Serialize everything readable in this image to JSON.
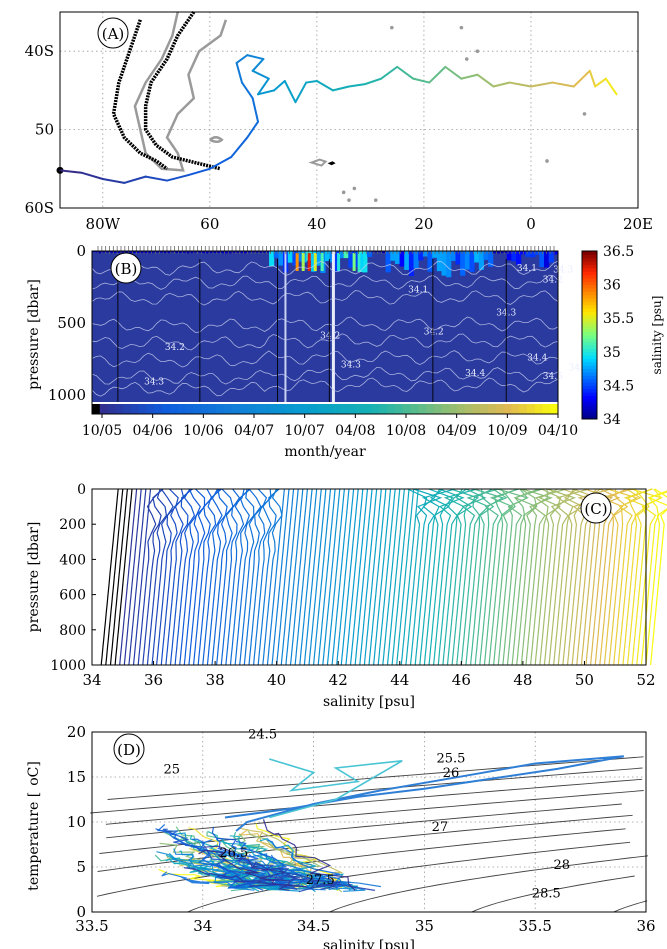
{
  "colors": {
    "grid": "#9a9a9a",
    "land": "#000000",
    "coast": "#9a9a9a",
    "iso": "#c8d0f0"
  },
  "chart_data": [
    {
      "panel": "A",
      "type": "line",
      "panel_label": "(A)",
      "x_ticks": [
        {
          "v": -80,
          "t": "80W"
        },
        {
          "v": -60,
          "t": "60"
        },
        {
          "v": -40,
          "t": "40"
        },
        {
          "v": -20,
          "t": "20"
        },
        {
          "v": 0,
          "t": "0"
        },
        {
          "v": 20,
          "t": "20E"
        }
      ],
      "y_ticks": [
        {
          "v": -40,
          "t": "40S"
        },
        {
          "v": -50,
          "t": "50"
        },
        {
          "v": -60,
          "t": "60S"
        }
      ],
      "xlim": [
        -88,
        20
      ],
      "ylim": [
        -60,
        -35
      ],
      "grid": true,
      "track": [
        [
          -88,
          -55.2
        ],
        [
          -84,
          -55.5
        ],
        [
          -80,
          -56.3
        ],
        [
          -76,
          -56.8
        ],
        [
          -72,
          -56.0
        ],
        [
          -68,
          -56.5
        ],
        [
          -64,
          -55.8
        ],
        [
          -60,
          -55.0
        ],
        [
          -56,
          -53.5
        ],
        [
          -53,
          -51.0
        ],
        [
          -51,
          -49.0
        ],
        [
          -52,
          -46.0
        ],
        [
          -54,
          -44.0
        ],
        [
          -55,
          -41.5
        ],
        [
          -53,
          -40.5
        ],
        [
          -50,
          -41.0
        ],
        [
          -52,
          -42.5
        ],
        [
          -49,
          -43.5
        ],
        [
          -51,
          -45.5
        ],
        [
          -48,
          -45.0
        ],
        [
          -46,
          -43.8
        ],
        [
          -44,
          -46.5
        ],
        [
          -42,
          -44.0
        ],
        [
          -40,
          -43.8
        ],
        [
          -37,
          -45.0
        ],
        [
          -34,
          -44.5
        ],
        [
          -31,
          -44.2
        ],
        [
          -28,
          -43.5
        ],
        [
          -25,
          -42.0
        ],
        [
          -22,
          -43.5
        ],
        [
          -19,
          -44.0
        ],
        [
          -16,
          -42.0
        ],
        [
          -13,
          -43.5
        ],
        [
          -10,
          -43.0
        ],
        [
          -7,
          -44.5
        ],
        [
          -4,
          -44.0
        ],
        [
          0,
          -44.5
        ],
        [
          4,
          -44.0
        ],
        [
          8,
          -44.5
        ],
        [
          11,
          -42.5
        ],
        [
          12,
          -44.5
        ],
        [
          14,
          -43.5
        ],
        [
          16,
          -45.5
        ]
      ]
    },
    {
      "panel": "B",
      "type": "heatmap",
      "panel_label": "(B)",
      "xlabel": "month/year",
      "ylabel": "pressure [dbar]",
      "x_ticks": [
        "10/05",
        "04/06",
        "10/06",
        "04/07",
        "10/07",
        "04/08",
        "10/08",
        "04/09",
        "10/09",
        "04/10"
      ],
      "y_ticks": [
        0,
        500,
        1000
      ],
      "ylim": [
        1050,
        0
      ],
      "colorbar": {
        "label": "salinity [psu]",
        "ticks": [
          "34",
          "34.5",
          "35",
          "35.5",
          "36",
          "36.5"
        ],
        "min": 34,
        "max": 36.5
      },
      "contour_labels": [
        {
          "m": 1.6,
          "p": 690,
          "t": "34.2"
        },
        {
          "m": 1.2,
          "p": 930,
          "t": "34.3"
        },
        {
          "m": 4.6,
          "p": 610,
          "t": "34.2"
        },
        {
          "m": 5.0,
          "p": 810,
          "t": "34.3"
        },
        {
          "m": 6.6,
          "p": 580,
          "t": "34.2"
        },
        {
          "m": 7.4,
          "p": 870,
          "t": "34.4"
        },
        {
          "m": 6.3,
          "p": 290,
          "t": "34.1"
        },
        {
          "m": 8.4,
          "p": 140,
          "t": "34.1"
        },
        {
          "m": 8.0,
          "p": 450,
          "t": "34.3"
        },
        {
          "m": 8.9,
          "p": 890,
          "t": "34.5"
        },
        {
          "m": 8.6,
          "p": 760,
          "t": "34.4"
        },
        {
          "m": 8.9,
          "p": 220,
          "t": "34.2"
        },
        {
          "m": 9.1,
          "p": 150,
          "t": "34.3"
        },
        {
          "m": 9.4,
          "p": 830,
          "t": "34.3"
        }
      ]
    },
    {
      "panel": "C",
      "type": "line",
      "panel_label": "(C)",
      "xlabel": "salinity [psu]",
      "ylabel": "pressure [dbar]",
      "x_ticks": [
        34,
        36,
        38,
        40,
        42,
        44,
        46,
        48,
        50,
        52
      ],
      "y_ticks": [
        0,
        200,
        400,
        600,
        800,
        1000
      ],
      "xlim": [
        34,
        52
      ],
      "ylim": [
        1000,
        0
      ],
      "profiles": 120,
      "offset_step": 0.15
    },
    {
      "panel": "D",
      "type": "line",
      "panel_label": "(D)",
      "xlabel": "salinity [psu]",
      "ylabel_main": "temperature [",
      "ylabel_unit": "oC]",
      "x_ticks": [
        "33.5",
        "34",
        "34.5",
        "35",
        "35.5",
        "36"
      ],
      "y_ticks": [
        "0",
        "5",
        "10",
        "15",
        "20"
      ],
      "xlim": [
        33.5,
        36
      ],
      "ylim": [
        0,
        20
      ],
      "sigma_labels": [
        {
          "s": 34.27,
          "t": 19.3,
          "l": "24.5"
        },
        {
          "s": 33.86,
          "t": 15.4,
          "l": "25"
        },
        {
          "s": 35.12,
          "t": 16.6,
          "l": "25.5"
        },
        {
          "s": 35.12,
          "t": 15.0,
          "l": "26"
        },
        {
          "s": 35.07,
          "t": 9.0,
          "l": "27"
        },
        {
          "s": 34.14,
          "t": 6.1,
          "l": "26.5"
        },
        {
          "s": 34.53,
          "t": 3.1,
          "l": "27.5"
        },
        {
          "s": 35.62,
          "t": 4.8,
          "l": "28"
        },
        {
          "s": 35.55,
          "t": 1.6,
          "l": "28.5"
        }
      ]
    }
  ]
}
